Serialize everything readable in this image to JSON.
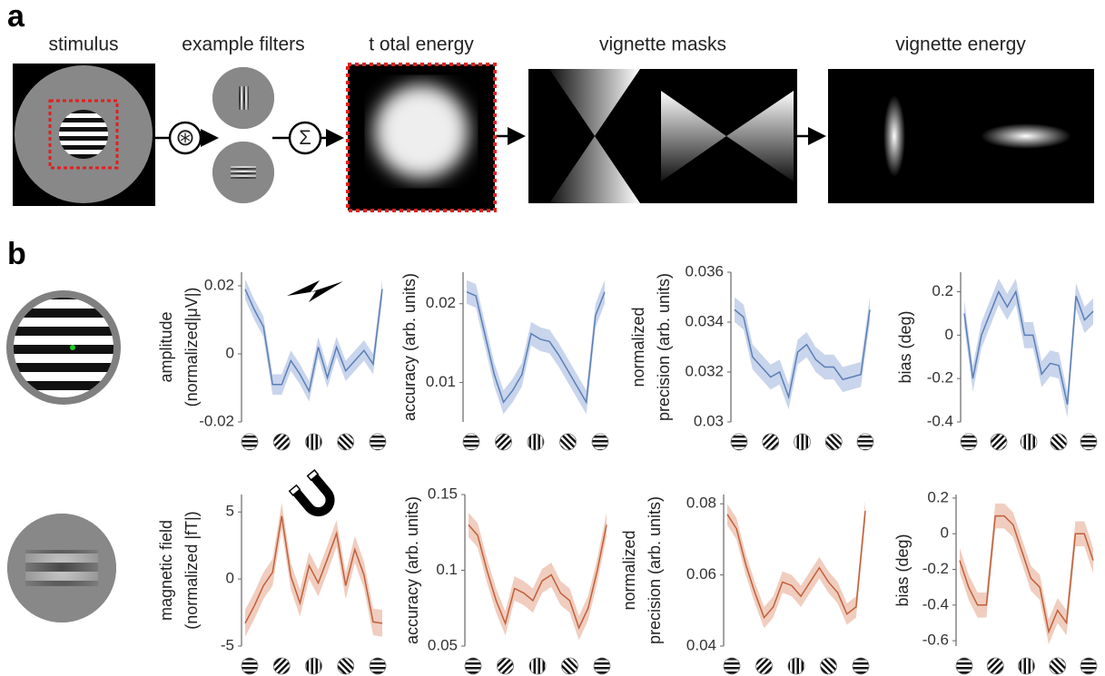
{
  "panel_a": {
    "label": "a",
    "titles": [
      "stimulus",
      "example filters",
      "t otal energy",
      "vignette masks",
      "vignette energy"
    ],
    "operators": [
      "⊛",
      "Σ"
    ]
  },
  "panel_b": {
    "label": "b"
  },
  "chart_data": [
    {
      "type": "line",
      "ylabel": [
        "amplitude",
        "(normalized|μV|)"
      ],
      "ylim": [
        -0.02,
        0.024
      ],
      "yticks": [
        -0.02,
        0,
        0.02
      ],
      "series": [
        {
          "color": "#5b7fb5",
          "band_color": "#c9d5ec",
          "values": [
            0.019,
            0.013,
            0.008,
            -0.009,
            -0.009,
            -0.002,
            -0.006,
            -0.011,
            0.002,
            -0.007,
            0.002,
            -0.005,
            -0.002,
            0.001,
            -0.003,
            0.019
          ],
          "errors": [
            0.003,
            0.003,
            0.003,
            0.003,
            0.003,
            0.003,
            0.003,
            0.003,
            0.003,
            0.003,
            0.003,
            0.003,
            0.003,
            0.003,
            0.003,
            0.003
          ]
        }
      ]
    },
    {
      "type": "line",
      "ylabel": [
        "accuracy (arb. units)"
      ],
      "ylim": [
        0.005,
        0.024
      ],
      "yticks": [
        0.01,
        0.02
      ],
      "series": [
        {
          "color": "#5b7fb5",
          "band_color": "#c9d5ec",
          "values": [
            0.0215,
            0.021,
            0.016,
            0.011,
            0.0075,
            0.009,
            0.011,
            0.0162,
            0.0155,
            0.0152,
            0.0135,
            0.0115,
            0.0095,
            0.0075,
            0.0185,
            0.0215
          ],
          "errors": [
            0.0015,
            0.0015,
            0.0015,
            0.0015,
            0.0015,
            0.0015,
            0.0015,
            0.0015,
            0.0015,
            0.0015,
            0.0015,
            0.0015,
            0.0015,
            0.0015,
            0.0015,
            0.0015
          ]
        }
      ]
    },
    {
      "type": "line",
      "ylabel": [
        "normalized",
        "precision (arb. units)"
      ],
      "ylim": [
        0.03,
        0.036
      ],
      "yticks": [
        0.03,
        0.032,
        0.034,
        0.036
      ],
      "series": [
        {
          "color": "#5b7fb5",
          "band_color": "#c9d5ec",
          "values": [
            0.0345,
            0.0342,
            0.0326,
            0.0322,
            0.0318,
            0.032,
            0.031,
            0.0328,
            0.0331,
            0.0325,
            0.0322,
            0.0322,
            0.0317,
            0.0318,
            0.0319,
            0.0345
          ],
          "errors": [
            0.0005,
            0.0005,
            0.0005,
            0.0005,
            0.0005,
            0.0005,
            0.0005,
            0.0005,
            0.0005,
            0.0005,
            0.0005,
            0.0005,
            0.0005,
            0.0005,
            0.0005,
            0.0005
          ]
        }
      ]
    },
    {
      "type": "line",
      "ylabel": [
        "bias (deg)"
      ],
      "ylim": [
        -0.4,
        0.29
      ],
      "yticks": [
        -0.4,
        -0.2,
        0,
        0.2
      ],
      "series": [
        {
          "color": "#5b7fb5",
          "band_color": "#c9d5ec",
          "values": [
            0.1,
            -0.2,
            0.0,
            0.1,
            0.2,
            0.13,
            0.2,
            0.0,
            0.0,
            -0.18,
            -0.13,
            -0.14,
            -0.32,
            0.18,
            0.07,
            0.11
          ],
          "errors": [
            0.06,
            0.06,
            0.06,
            0.06,
            0.06,
            0.06,
            0.06,
            0.06,
            0.06,
            0.06,
            0.06,
            0.06,
            0.06,
            0.06,
            0.06,
            0.06
          ]
        }
      ]
    },
    {
      "type": "line",
      "ylabel": [
        "magnetic field",
        "(normalized |fT|)"
      ],
      "ylim": [
        -5,
        6.3
      ],
      "yticks": [
        -5,
        0,
        5
      ],
      "series": [
        {
          "color": "#c0603a",
          "band_color": "#f0cdbf",
          "values": [
            -3.3,
            -2,
            -0.5,
            0.5,
            4.7,
            0.2,
            -1.8,
            1.0,
            -0.3,
            1.5,
            3.4,
            -0.5,
            2.2,
            0.3,
            -3.2,
            -3.3
          ],
          "errors": [
            1,
            1,
            1,
            1,
            1,
            1,
            1,
            1,
            1,
            1,
            1,
            1,
            1,
            1,
            1,
            1
          ]
        }
      ]
    },
    {
      "type": "line",
      "ylabel": [
        "accuracy (arb. units)"
      ],
      "ylim": [
        0.05,
        0.15
      ],
      "yticks": [
        0.05,
        0.1,
        0.15
      ],
      "series": [
        {
          "color": "#c0603a",
          "band_color": "#f0cdbf",
          "values": [
            0.13,
            0.123,
            0.1,
            0.08,
            0.065,
            0.088,
            0.085,
            0.08,
            0.093,
            0.097,
            0.085,
            0.08,
            0.062,
            0.075,
            0.1,
            0.13
          ],
          "errors": [
            0.008,
            0.008,
            0.008,
            0.008,
            0.008,
            0.008,
            0.008,
            0.008,
            0.008,
            0.008,
            0.008,
            0.008,
            0.008,
            0.008,
            0.008,
            0.008
          ]
        }
      ]
    },
    {
      "type": "line",
      "ylabel": [
        "normalized",
        "precision (arb. units)"
      ],
      "ylim": [
        0.04,
        0.0826
      ],
      "yticks": [
        0.04,
        0.06,
        0.08
      ],
      "series": [
        {
          "color": "#c0603a",
          "band_color": "#f0cdbf",
          "values": [
            0.077,
            0.073,
            0.063,
            0.055,
            0.048,
            0.051,
            0.058,
            0.057,
            0.054,
            0.058,
            0.062,
            0.058,
            0.055,
            0.049,
            0.051,
            0.078
          ],
          "errors": [
            0.003,
            0.003,
            0.003,
            0.003,
            0.003,
            0.003,
            0.003,
            0.003,
            0.003,
            0.003,
            0.003,
            0.003,
            0.003,
            0.003,
            0.003,
            0.003
          ]
        }
      ]
    },
    {
      "type": "line",
      "ylabel": [
        "bias (deg)"
      ],
      "ylim": [
        -0.63,
        0.22
      ],
      "yticks": [
        -0.6,
        -0.4,
        -0.2,
        0,
        0.2
      ],
      "series": [
        {
          "color": "#c0603a",
          "band_color": "#f0cdbf",
          "values": [
            -0.15,
            -0.3,
            -0.4,
            -0.4,
            0.1,
            0.1,
            0.05,
            -0.1,
            -0.25,
            -0.3,
            -0.55,
            -0.43,
            -0.5,
            0.0,
            0.0,
            -0.15
          ],
          "errors": [
            0.07,
            0.07,
            0.07,
            0.07,
            0.07,
            0.07,
            0.07,
            0.07,
            0.07,
            0.07,
            0.07,
            0.07,
            0.07,
            0.07,
            0.07,
            0.07
          ]
        }
      ]
    }
  ]
}
